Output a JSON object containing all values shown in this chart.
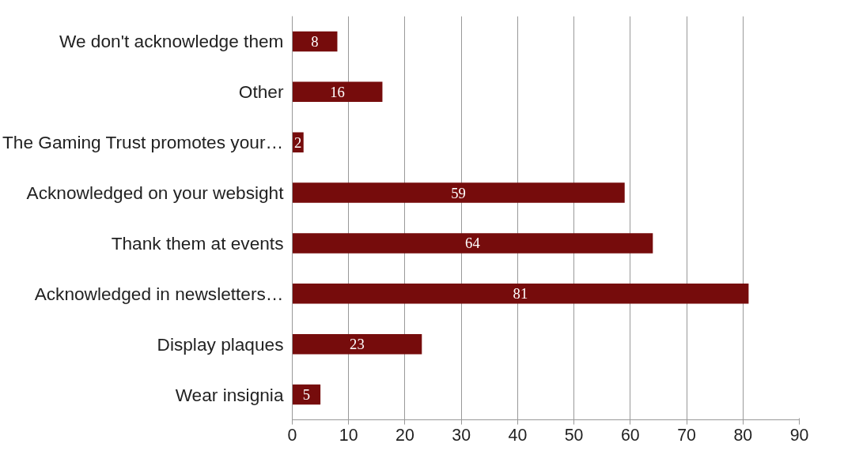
{
  "chart_data": {
    "type": "bar",
    "orientation": "horizontal",
    "categories": [
      "We don't acknowledge them",
      "Other",
      "The Gaming Trust promotes your…",
      "Acknowledged on your websight",
      "Thank them at events",
      "Acknowledged in newsletters…",
      "Display plaques",
      "Wear insignia"
    ],
    "values": [
      8,
      16,
      2,
      59,
      64,
      81,
      23,
      5
    ],
    "color": "#760c0c",
    "xlim": [
      0,
      90
    ],
    "xticks": [
      0,
      10,
      20,
      30,
      40,
      50,
      60,
      70,
      80,
      90
    ],
    "grid": "x",
    "data_labels": true
  }
}
